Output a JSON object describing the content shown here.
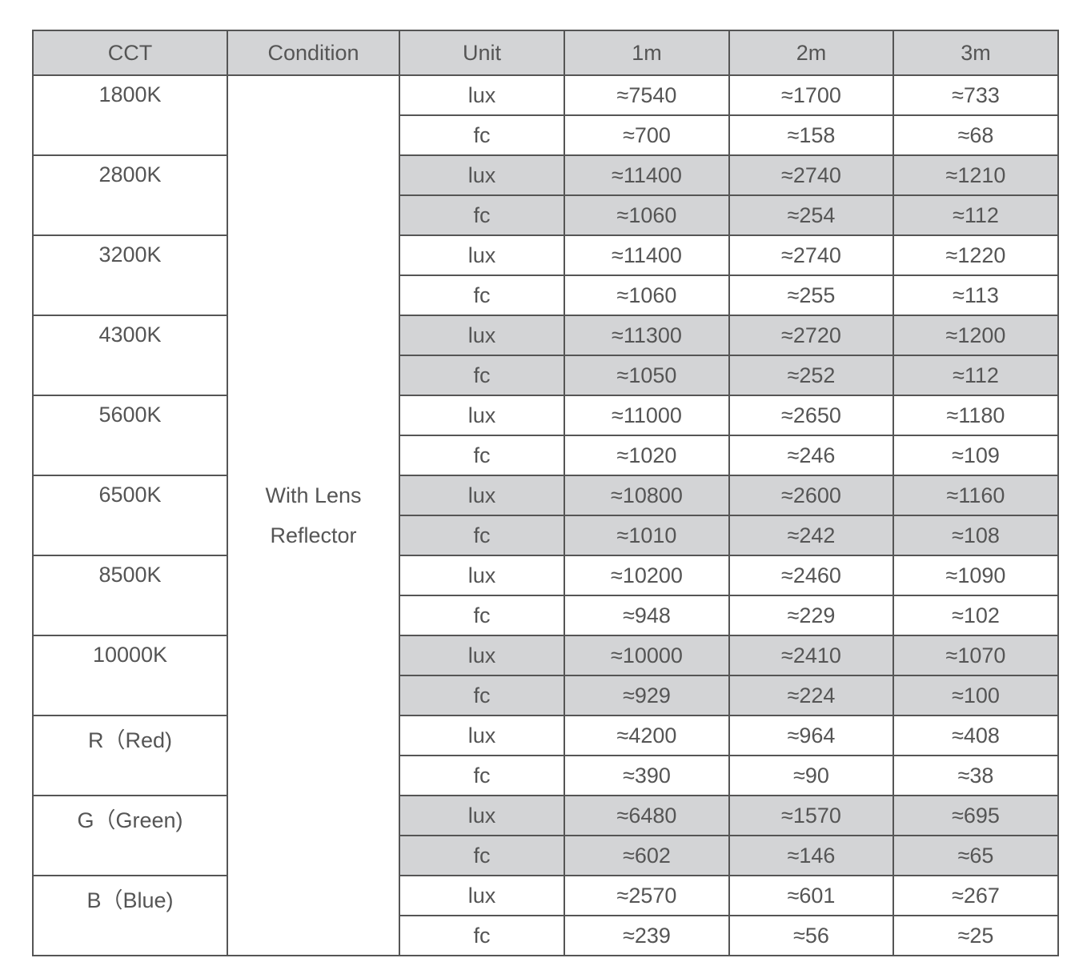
{
  "table": {
    "headers": [
      "CCT",
      "Condition",
      "Unit",
      "1m",
      "2m",
      "3m"
    ],
    "condition": [
      "With Lens",
      "Reflector"
    ],
    "header_bg": "#d3d4d6",
    "groups": [
      {
        "cct": "1800K",
        "shaded": false,
        "rows": [
          [
            "lux",
            "≈7540",
            "≈1700",
            "≈733"
          ],
          [
            "fc",
            "≈700",
            "≈158",
            "≈68"
          ]
        ]
      },
      {
        "cct": "2800K",
        "shaded": true,
        "rows": [
          [
            "lux",
            "≈11400",
            "≈2740",
            "≈1210"
          ],
          [
            "fc",
            "≈1060",
            "≈254",
            "≈112"
          ]
        ]
      },
      {
        "cct": "3200K",
        "shaded": false,
        "rows": [
          [
            "lux",
            "≈11400",
            "≈2740",
            "≈1220"
          ],
          [
            "fc",
            "≈1060",
            "≈255",
            "≈113"
          ]
        ]
      },
      {
        "cct": "4300K",
        "shaded": true,
        "rows": [
          [
            "lux",
            "≈11300",
            "≈2720",
            "≈1200"
          ],
          [
            "fc",
            "≈1050",
            "≈252",
            "≈112"
          ]
        ]
      },
      {
        "cct": "5600K",
        "shaded": false,
        "rows": [
          [
            "lux",
            "≈11000",
            "≈2650",
            "≈1180"
          ],
          [
            "fc",
            "≈1020",
            "≈246",
            "≈109"
          ]
        ]
      },
      {
        "cct": "6500K",
        "shaded": true,
        "rows": [
          [
            "lux",
            "≈10800",
            "≈2600",
            "≈1160"
          ],
          [
            "fc",
            "≈1010",
            "≈242",
            "≈108"
          ]
        ]
      },
      {
        "cct": "8500K",
        "shaded": false,
        "rows": [
          [
            "lux",
            "≈10200",
            "≈2460",
            "≈1090"
          ],
          [
            "fc",
            "≈948",
            "≈229",
            "≈102"
          ]
        ]
      },
      {
        "cct": "10000K",
        "shaded": true,
        "rows": [
          [
            "lux",
            "≈10000",
            "≈2410",
            "≈1070"
          ],
          [
            "fc",
            "≈929",
            "≈224",
            "≈100"
          ]
        ]
      },
      {
        "cct": "R（Red)",
        "shaded": false,
        "rows": [
          [
            "lux",
            "≈4200",
            "≈964",
            "≈408"
          ],
          [
            "fc",
            "≈390",
            "≈90",
            "≈38"
          ]
        ]
      },
      {
        "cct": "G（Green)",
        "shaded": true,
        "rows": [
          [
            "lux",
            "≈6480",
            "≈1570",
            "≈695"
          ],
          [
            "fc",
            "≈602",
            "≈146",
            "≈65"
          ]
        ]
      },
      {
        "cct": "B（Blue)",
        "shaded": false,
        "rows": [
          [
            "lux",
            "≈2570",
            "≈601",
            "≈267"
          ],
          [
            "fc",
            "≈239",
            "≈56",
            "≈25"
          ]
        ]
      }
    ]
  }
}
